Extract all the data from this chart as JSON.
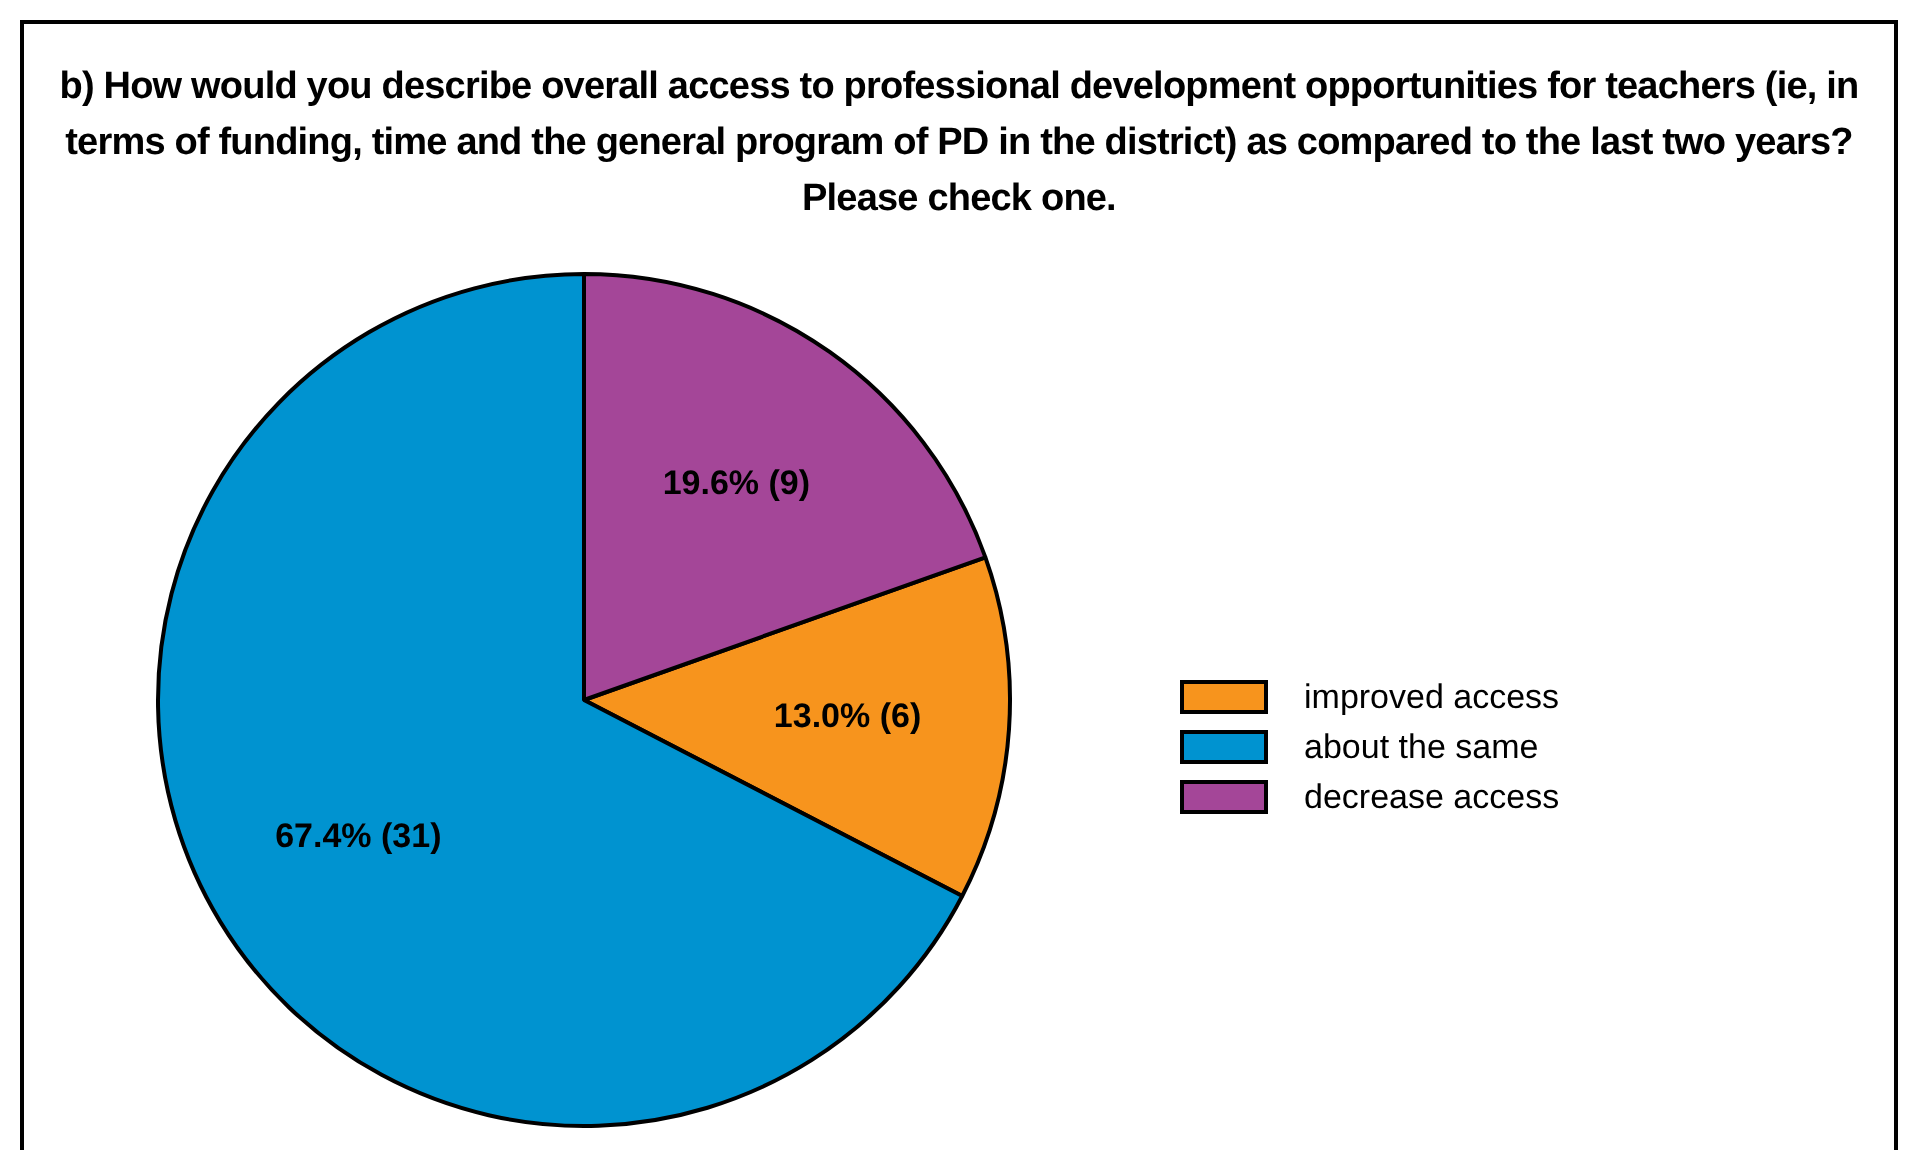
{
  "chart_data": {
    "type": "pie",
    "title": "b) How would you describe overall access to professional development opportunities for teachers (ie, in terms of funding, time and the general program of PD in the district) as compared to the last two years? Please check one.",
    "categories": [
      "improved access",
      "about the same",
      "decrease access"
    ],
    "values": [
      6,
      31,
      9
    ],
    "colors": [
      "#f7941d",
      "#0093d0",
      "#a44698"
    ],
    "value_labels": [
      "13.0% (6)",
      "67.4% (31)",
      "19.6% (9)"
    ],
    "legend": "right"
  }
}
